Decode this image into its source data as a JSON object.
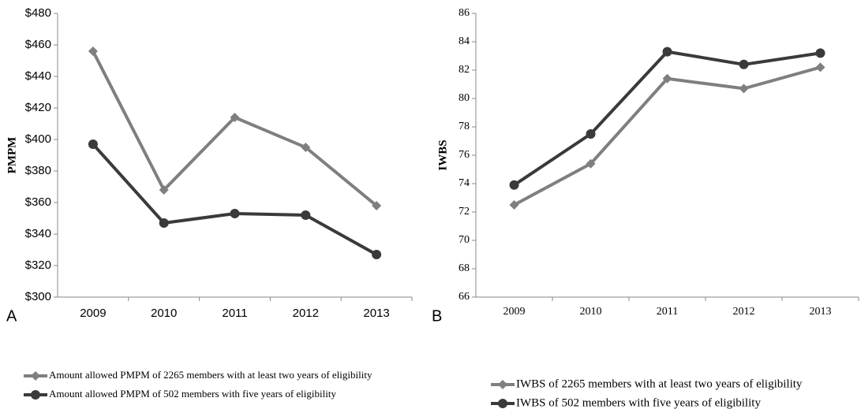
{
  "chart_data": [
    {
      "type": "line",
      "panel_label": "A",
      "y_label": "PMPM",
      "categories": [
        "2009",
        "2010",
        "2011",
        "2012",
        "2013"
      ],
      "series": [
        {
          "name": "Amount allowed PMPM of 2265 members with at least two years of eligibility",
          "color": "#7f7f7f",
          "marker": "diamond",
          "values": [
            456,
            368,
            414,
            395,
            358
          ]
        },
        {
          "name": "Amount allowed PMPM of 502  members with five years of eligibility",
          "color": "#3a3a3a",
          "marker": "circle",
          "values": [
            397,
            347,
            353,
            352,
            327
          ]
        }
      ],
      "ylim": [
        300,
        480
      ],
      "yticks": [
        {
          "value": 300,
          "label": "$300"
        },
        {
          "value": 320,
          "label": "$320"
        },
        {
          "value": 340,
          "label": "$340"
        },
        {
          "value": 360,
          "label": "$360"
        },
        {
          "value": 380,
          "label": "$380"
        },
        {
          "value": 400,
          "label": "$400"
        },
        {
          "value": 420,
          "label": "$420"
        },
        {
          "value": 440,
          "label": "$440"
        },
        {
          "value": 460,
          "label": "$460"
        },
        {
          "value": 480,
          "label": "$480"
        }
      ],
      "grid": false
    },
    {
      "type": "line",
      "panel_label": "B",
      "y_label": "IWBS",
      "categories": [
        "2009",
        "2010",
        "2011",
        "2012",
        "2013"
      ],
      "series": [
        {
          "name": "IWBS of 2265 members with at least two years of eligibility",
          "color": "#7f7f7f",
          "marker": "diamond",
          "values": [
            72.5,
            75.4,
            81.4,
            80.7,
            82.2
          ]
        },
        {
          "name": "IWBS of 502 members with five years of eligibility",
          "color": "#3a3a3a",
          "marker": "circle",
          "values": [
            73.9,
            77.5,
            83.3,
            82.4,
            83.2
          ]
        }
      ],
      "ylim": [
        66,
        86
      ],
      "yticks": [
        66,
        68,
        70,
        72,
        74,
        76,
        78,
        80,
        82,
        84,
        86
      ],
      "grid": false
    }
  ]
}
